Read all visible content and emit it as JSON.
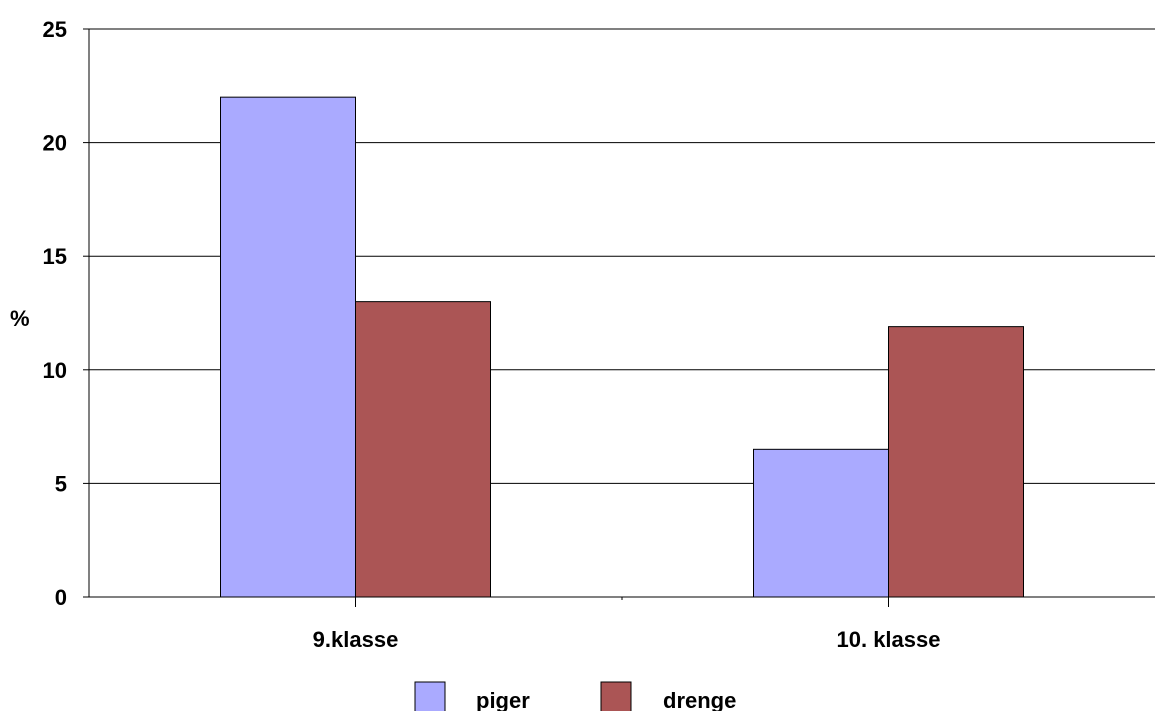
{
  "chart_data": {
    "type": "bar",
    "title": "",
    "xlabel": "",
    "ylabel": "%",
    "ylim": [
      0,
      25
    ],
    "yticks": [
      0,
      5,
      10,
      15,
      20,
      25
    ],
    "categories": [
      "9.klasse",
      "10. klasse"
    ],
    "series": [
      {
        "name": "piger",
        "values": [
          22,
          6.5
        ],
        "color": "#aaaaff"
      },
      {
        "name": "drenge",
        "values": [
          13,
          11.9
        ],
        "color": "#ab5555"
      }
    ],
    "grid": true,
    "legend_position": "bottom"
  }
}
